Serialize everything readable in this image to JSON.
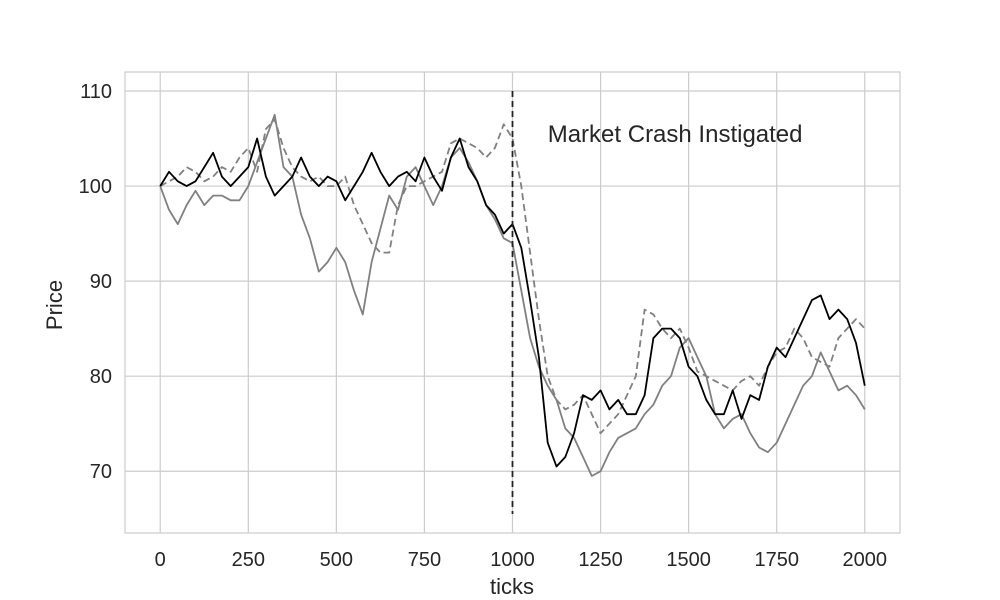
{
  "chart_data": {
    "type": "line",
    "xlabel": "ticks",
    "ylabel": "Price",
    "xlim": [
      -100,
      2100
    ],
    "ylim": [
      63.5,
      112
    ],
    "x_ticks": [
      0,
      250,
      500,
      750,
      1000,
      1250,
      1500,
      1750,
      2000
    ],
    "y_ticks": [
      70,
      80,
      90,
      100,
      110
    ],
    "grid": true,
    "annotation": {
      "text": "Market Crash Instigated",
      "x": 1100,
      "y": 105.5
    },
    "vline": {
      "x": 1000,
      "y_from": 65.5,
      "y_to": 110,
      "style": "dashed",
      "color": "#222222"
    },
    "series": [
      {
        "color": "#000000",
        "dash": "solid",
        "x": [
          0,
          25,
          50,
          75,
          100,
          125,
          150,
          175,
          200,
          225,
          250,
          275,
          300,
          325,
          350,
          375,
          400,
          425,
          450,
          475,
          500,
          525,
          550,
          575,
          600,
          625,
          650,
          675,
          700,
          725,
          750,
          775,
          800,
          825,
          850,
          875,
          900,
          925,
          950,
          975,
          1000,
          1025,
          1050,
          1075,
          1100,
          1125,
          1150,
          1175,
          1200,
          1225,
          1250,
          1275,
          1300,
          1325,
          1350,
          1375,
          1400,
          1425,
          1450,
          1475,
          1500,
          1525,
          1550,
          1575,
          1600,
          1625,
          1650,
          1675,
          1700,
          1725,
          1750,
          1775,
          1800,
          1825,
          1850,
          1875,
          1900,
          1925,
          1950,
          1975,
          2000
        ],
        "values": [
          100,
          101.5,
          100.5,
          100,
          100.5,
          102,
          103.5,
          101,
          100,
          101,
          102,
          105,
          101,
          99,
          100,
          101,
          103,
          101,
          100,
          101,
          100.5,
          98.5,
          100,
          101.5,
          103.5,
          101.5,
          100,
          101,
          101.5,
          100.5,
          103,
          101,
          99.5,
          103,
          105,
          102,
          100.5,
          98,
          97,
          95,
          96,
          93.5,
          88,
          82,
          73,
          70.5,
          71.5,
          74,
          78,
          77.5,
          78.5,
          76.5,
          77.5,
          76,
          76,
          78,
          84,
          85,
          85,
          84,
          81,
          80,
          77.5,
          76,
          76,
          78.5,
          75.5,
          78,
          77.5,
          81,
          83,
          82,
          84,
          86,
          88,
          88.5,
          86,
          87,
          86,
          83.5,
          79
        ]
      },
      {
        "color": "#808080",
        "dash": "solid",
        "x": [
          0,
          25,
          50,
          75,
          100,
          125,
          150,
          175,
          200,
          225,
          250,
          275,
          300,
          325,
          350,
          375,
          400,
          425,
          450,
          475,
          500,
          525,
          550,
          575,
          600,
          625,
          650,
          675,
          700,
          725,
          750,
          775,
          800,
          825,
          850,
          875,
          900,
          925,
          950,
          975,
          1000,
          1025,
          1050,
          1075,
          1100,
          1125,
          1150,
          1175,
          1200,
          1225,
          1250,
          1275,
          1300,
          1325,
          1350,
          1375,
          1400,
          1425,
          1450,
          1475,
          1500,
          1525,
          1550,
          1575,
          1600,
          1625,
          1650,
          1675,
          1700,
          1725,
          1750,
          1775,
          1800,
          1825,
          1850,
          1875,
          1900,
          1925,
          1950,
          1975,
          2000
        ],
        "values": [
          100,
          97.5,
          96,
          98,
          99.5,
          98,
          99,
          99,
          98.5,
          98.5,
          100,
          102.5,
          105,
          107.5,
          102,
          101,
          97,
          94.5,
          91,
          92,
          93.5,
          92,
          89,
          86.5,
          92,
          95.5,
          99,
          97.5,
          101,
          102,
          100,
          98,
          100,
          103,
          104,
          102.5,
          100.5,
          98,
          96.5,
          94.5,
          94,
          89,
          84,
          81,
          79,
          77.5,
          74.5,
          73.5,
          71.5,
          69.5,
          70,
          72,
          73.5,
          74,
          74.5,
          76,
          77,
          79,
          80,
          83,
          84,
          82,
          80,
          76,
          74.5,
          75.5,
          76,
          74,
          72.5,
          72,
          73,
          75,
          77,
          79,
          80,
          82.5,
          80.5,
          78.5,
          79,
          78,
          76.5
        ]
      },
      {
        "color": "#808080",
        "dash": "dashed",
        "x": [
          0,
          25,
          50,
          75,
          100,
          125,
          150,
          175,
          200,
          225,
          250,
          275,
          300,
          325,
          350,
          375,
          400,
          425,
          450,
          475,
          500,
          525,
          550,
          575,
          600,
          625,
          650,
          675,
          700,
          725,
          750,
          775,
          800,
          825,
          850,
          875,
          900,
          925,
          950,
          975,
          1000,
          1025,
          1050,
          1075,
          1100,
          1125,
          1150,
          1175,
          1200,
          1225,
          1250,
          1275,
          1300,
          1325,
          1350,
          1375,
          1400,
          1425,
          1450,
          1475,
          1500,
          1525,
          1550,
          1575,
          1600,
          1625,
          1650,
          1675,
          1700,
          1725,
          1750,
          1775,
          1800,
          1825,
          1850,
          1875,
          1900,
          1925,
          1950,
          1975,
          2000
        ],
        "values": [
          100,
          100.5,
          101,
          102,
          101.5,
          100.5,
          101,
          102,
          101.5,
          103,
          104,
          101.5,
          106,
          107,
          104,
          102,
          101,
          100.5,
          101,
          100,
          100,
          101,
          98,
          96,
          94,
          93,
          93,
          98,
          100,
          100,
          100.5,
          101,
          101.5,
          104.5,
          105,
          104.5,
          104,
          103,
          104,
          106.5,
          105,
          100,
          93,
          86,
          80,
          77.5,
          76.5,
          77,
          78,
          76,
          74,
          75,
          76,
          78,
          80,
          87,
          86.5,
          85,
          84,
          85,
          83,
          80.5,
          80,
          79.5,
          79,
          78.5,
          79.5,
          80,
          79,
          81,
          82.5,
          83,
          85,
          84,
          82,
          81.5,
          81,
          84,
          85,
          86,
          85
        ]
      }
    ]
  }
}
